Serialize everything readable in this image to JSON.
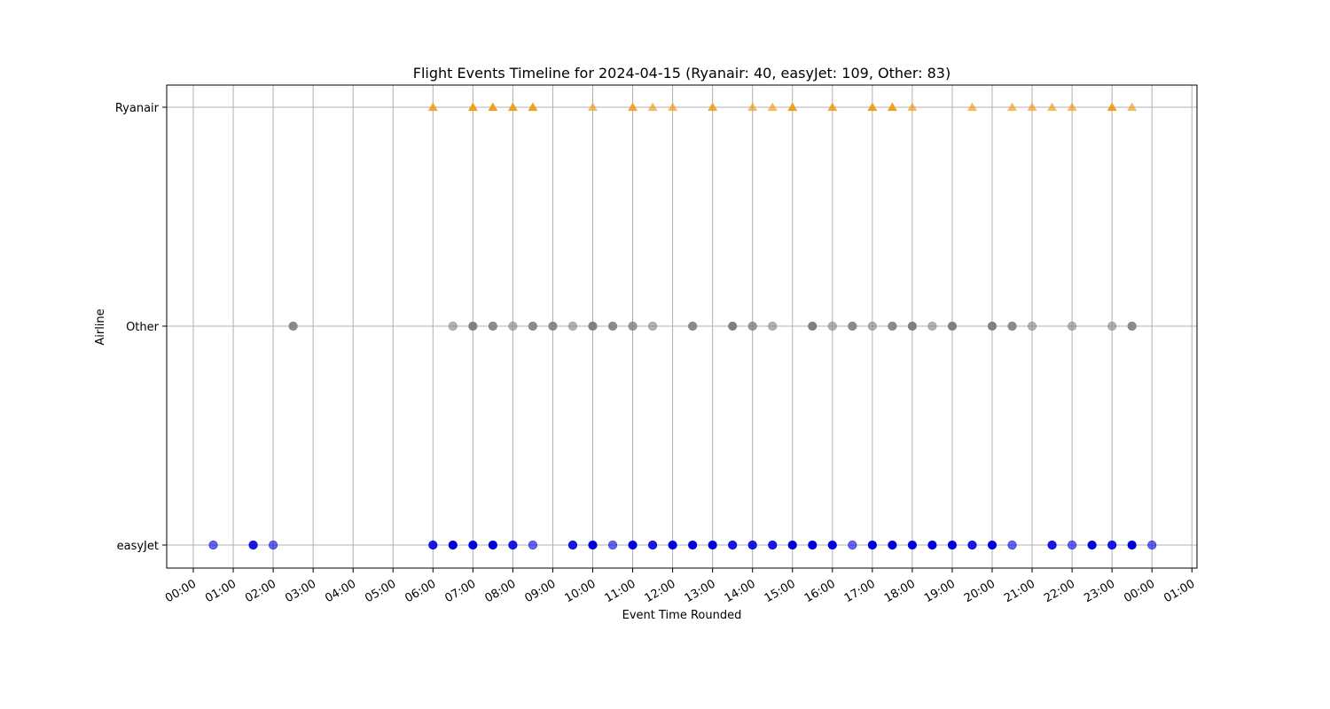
{
  "chart_data": {
    "type": "scatter",
    "title": "Flight Events Timeline for 2024-04-15 (Ryanair: 40, easyJet: 109, Other: 83)",
    "xlabel": "Event Time Rounded",
    "ylabel": "Airline",
    "categories": [
      "easyJet",
      "Other",
      "Ryanair"
    ],
    "x_ticks": [
      "00:00",
      "01:00",
      "02:00",
      "03:00",
      "04:00",
      "05:00",
      "06:00",
      "07:00",
      "08:00",
      "09:00",
      "10:00",
      "11:00",
      "12:00",
      "13:00",
      "14:00",
      "15:00",
      "16:00",
      "17:00",
      "18:00",
      "19:00",
      "20:00",
      "21:00",
      "22:00",
      "23:00",
      "00:00",
      "01:00"
    ],
    "grid": true,
    "series": [
      {
        "name": "easyJet",
        "color": "#0000dd",
        "marker": "circle",
        "x": [
          "00:30",
          "01:30",
          "02:00",
          "06:00",
          "06:30",
          "07:00",
          "07:30",
          "08:00",
          "08:30",
          "09:30",
          "10:00",
          "10:30",
          "11:00",
          "11:30",
          "12:00",
          "12:30",
          "13:00",
          "13:30",
          "14:00",
          "14:30",
          "15:00",
          "15:30",
          "16:00",
          "16:30",
          "17:00",
          "17:30",
          "18:00",
          "18:30",
          "19:00",
          "19:30",
          "20:00",
          "20:30",
          "21:30",
          "22:00",
          "22:30",
          "23:00",
          "23:30",
          "24:00"
        ],
        "opacity": [
          0.6,
          0.9,
          0.6,
          0.9,
          1,
          1,
          1,
          0.9,
          0.6,
          0.9,
          1,
          0.6,
          1,
          0.9,
          1,
          1,
          1,
          0.9,
          0.9,
          0.9,
          1,
          1,
          1,
          0.6,
          1,
          1,
          1,
          1,
          1,
          0.9,
          1,
          0.6,
          0.9,
          0.6,
          1,
          0.9,
          1,
          0.6
        ]
      },
      {
        "name": "Other",
        "color": "#808080",
        "marker": "circle",
        "x": [
          "02:30",
          "06:30",
          "07:00",
          "07:30",
          "08:00",
          "08:30",
          "09:00",
          "09:30",
          "10:00",
          "10:30",
          "11:00",
          "11:30",
          "12:30",
          "13:30",
          "14:00",
          "14:30",
          "15:30",
          "16:00",
          "16:30",
          "17:00",
          "17:30",
          "18:00",
          "18:30",
          "19:00",
          "20:00",
          "20:30",
          "21:00",
          "22:00",
          "23:00",
          "23:30"
        ],
        "opacity": [
          0.9,
          0.6,
          1,
          0.9,
          0.6,
          0.9,
          0.9,
          0.6,
          1,
          0.9,
          0.8,
          0.6,
          0.9,
          1,
          0.8,
          0.6,
          1,
          0.6,
          0.9,
          0.6,
          0.9,
          1,
          0.6,
          1,
          1,
          0.9,
          0.6,
          0.6,
          0.6,
          0.9
        ]
      },
      {
        "name": "Ryanair",
        "color": "#f0a020",
        "marker": "triangle",
        "x": [
          "06:00",
          "07:00",
          "07:30",
          "08:00",
          "08:30",
          "10:00",
          "11:00",
          "11:30",
          "12:00",
          "13:00",
          "14:00",
          "14:30",
          "15:00",
          "16:00",
          "17:00",
          "17:30",
          "18:00",
          "19:30",
          "20:30",
          "21:00",
          "21:30",
          "22:00",
          "23:00",
          "23:30"
        ],
        "opacity": [
          0.9,
          1,
          1,
          1,
          1,
          0.7,
          0.9,
          0.7,
          0.7,
          0.9,
          0.7,
          0.7,
          1,
          0.9,
          1,
          1,
          0.7,
          0.7,
          0.7,
          0.7,
          0.7,
          0.7,
          1,
          0.7
        ]
      }
    ]
  }
}
